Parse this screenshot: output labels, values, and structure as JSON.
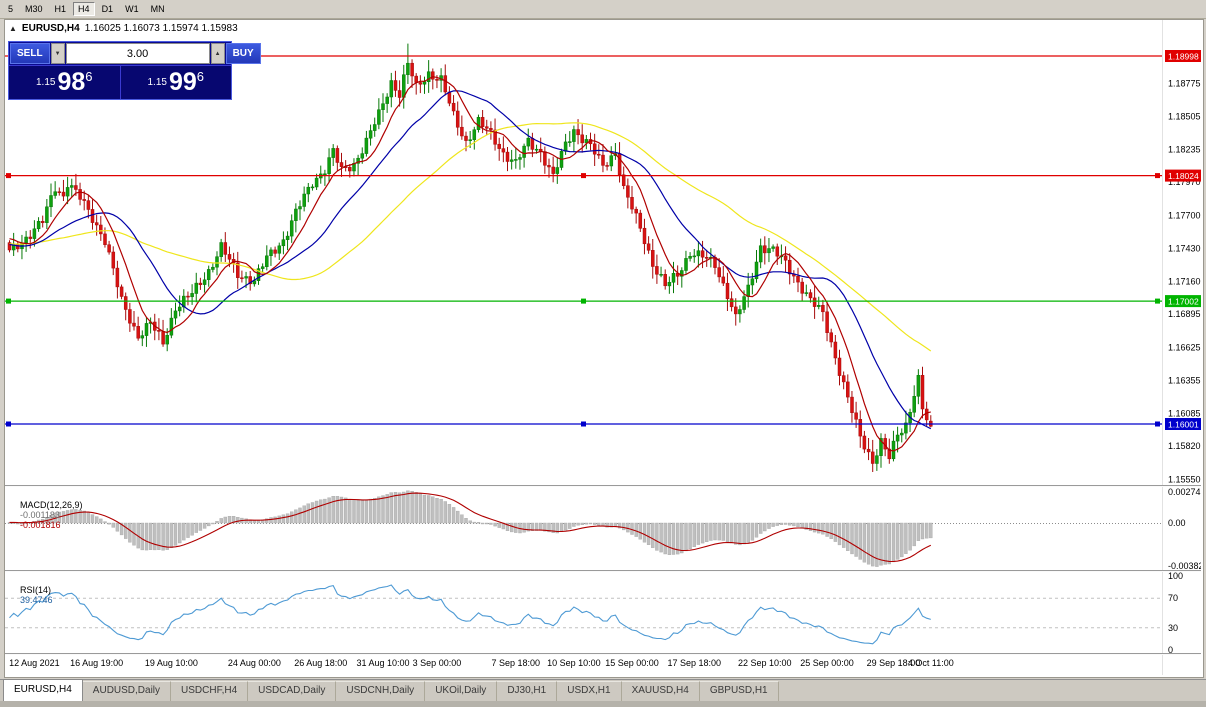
{
  "toolbar": {
    "timeframes": [
      "5",
      "M30",
      "H1",
      "H4",
      "D1",
      "W1",
      "MN"
    ],
    "active": "H4"
  },
  "chart": {
    "symbol": "EURUSD,H4",
    "ohlc": "1.16025 1.16073 1.15974 1.15983"
  },
  "icons": {
    "collapse": "▲",
    "up_arrow": "▲",
    "down_arrow": "▼"
  },
  "one_click": {
    "sell_label": "SELL",
    "buy_label": "BUY",
    "lot": "3.00",
    "sell_price": {
      "prefix": "1.15",
      "big": "98",
      "sup": "6"
    },
    "buy_price": {
      "prefix": "1.15",
      "big": "99",
      "sup": "6"
    }
  },
  "price_axis_labels": [
    "1.18775",
    "1.18505",
    "1.18235",
    "1.17970",
    "1.17700",
    "1.17430",
    "1.17160",
    "1.16895",
    "1.16625",
    "1.16355",
    "1.16085",
    "1.15820",
    "1.15550"
  ],
  "macd": {
    "label": "MACD(12,26,9)",
    "value_main": "-0.001183",
    "value_signal": "-0.001816",
    "axis": [
      {
        "label": "0.00274",
        "value": 0.00274
      },
      {
        "label": "0.00",
        "value": 0
      },
      {
        "label": "-0.00382",
        "value": -0.00382
      }
    ]
  },
  "rsi": {
    "label": "RSI(14)",
    "value": "39.4746",
    "axis": [
      {
        "label": "100",
        "value": 100
      },
      {
        "label": "70",
        "value": 70
      },
      {
        "label": "30",
        "value": 30
      },
      {
        "label": "0",
        "value": 0
      }
    ],
    "levels": [
      70,
      30
    ]
  },
  "time_axis": [
    {
      "text": "12 Aug 2021",
      "i": 6
    },
    {
      "text": "16 Aug 19:00",
      "i": 21
    },
    {
      "text": "19 Aug 10:00",
      "i": 39
    },
    {
      "text": "24 Aug 00:00",
      "i": 59
    },
    {
      "text": "26 Aug 18:00",
      "i": 75
    },
    {
      "text": "31 Aug 10:00",
      "i": 90
    },
    {
      "text": "3 Sep 00:00",
      "i": 103
    },
    {
      "text": "7 Sep 18:00",
      "i": 122
    },
    {
      "text": "10 Sep 10:00",
      "i": 136
    },
    {
      "text": "15 Sep 00:00",
      "i": 150
    },
    {
      "text": "17 Sep 18:00",
      "i": 165
    },
    {
      "text": "22 Sep 10:00",
      "i": 182
    },
    {
      "text": "25 Sep 00:00",
      "i": 197
    },
    {
      "text": "29 Sep 18:00",
      "i": 213
    },
    {
      "text": "4 Oct 11:00",
      "i": 222
    }
  ],
  "tabs": [
    {
      "label": "EURUSD,H4",
      "active": true
    },
    {
      "label": "AUDUSD,Daily",
      "active": false
    },
    {
      "label": "USDCHF,H4",
      "active": false
    },
    {
      "label": "USDCAD,Daily",
      "active": false
    },
    {
      "label": "USDCNH,Daily",
      "active": false
    },
    {
      "label": "UKOil,Daily",
      "active": false
    },
    {
      "label": "DJ30,H1",
      "active": false
    },
    {
      "label": "USDX,H1",
      "active": false
    },
    {
      "label": "XAUUSD,H4",
      "active": false
    },
    {
      "label": "GBPUSD,H1",
      "active": false
    }
  ],
  "colors": {
    "candle_up": "#0fa00f",
    "candle_up_dark": "#077807",
    "candle_down": "#d81212",
    "candle_down_dark": "#a60b0b",
    "ma_fast": "#b00000",
    "ma_mid": "#0000a8",
    "ma_slow": "#efe61c",
    "macd_hist": "#bfbfbf",
    "macd_signal": "#b00000",
    "rsi_line": "#4e9ad4"
  },
  "chart_data": {
    "type": "candlestick",
    "symbol": "EURUSD",
    "timeframe": "H4",
    "visible_range": {
      "start": "12 Aug 2021",
      "end": "4 Oct 11:00"
    },
    "price_range": [
      1.15513,
      1.19291
    ],
    "candle_count": 223,
    "last_candle": {
      "open": 1.16025,
      "high": 1.16073,
      "low": 1.15974,
      "close": 1.15983
    },
    "quote": {
      "bid": "1.15986",
      "ask": "1.15996"
    },
    "hlines": [
      {
        "price": 1.18998,
        "label": "1.18998",
        "color": "#e00000",
        "handles": false
      },
      {
        "price": 1.18024,
        "label": "1.18024",
        "color": "#e00000",
        "handles": true
      },
      {
        "price": 1.17002,
        "label": "1.17002",
        "color": "#00b400",
        "handles": true
      },
      {
        "price": 1.16001,
        "label": "1.16001",
        "color": "#0000cc",
        "handles": true
      }
    ],
    "moving_averages": [
      {
        "name": "ma-fast",
        "period": 8
      },
      {
        "name": "ma-mid",
        "period": 21
      },
      {
        "name": "ma-slow",
        "period": 50
      }
    ],
    "waypoints": [
      [
        0,
        1.174
      ],
      [
        4,
        1.1752
      ],
      [
        8,
        1.1765
      ],
      [
        11,
        1.1793
      ],
      [
        13,
        1.1786
      ],
      [
        14,
        1.1797
      ],
      [
        17,
        1.1784
      ],
      [
        20,
        1.1768
      ],
      [
        23,
        1.175
      ],
      [
        27,
        1.17
      ],
      [
        31,
        1.1672
      ],
      [
        34,
        1.1682
      ],
      [
        37,
        1.1666
      ],
      [
        40,
        1.1695
      ],
      [
        44,
        1.1706
      ],
      [
        48,
        1.1725
      ],
      [
        51,
        1.1744
      ],
      [
        55,
        1.1722
      ],
      [
        59,
        1.1717
      ],
      [
        62,
        1.1735
      ],
      [
        66,
        1.175
      ],
      [
        69,
        1.1772
      ],
      [
        73,
        1.1797
      ],
      [
        76,
        1.1808
      ],
      [
        78,
        1.1822
      ],
      [
        80,
        1.1806
      ],
      [
        83,
        1.1812
      ],
      [
        86,
        1.183
      ],
      [
        89,
        1.1852
      ],
      [
        92,
        1.1879
      ],
      [
        94,
        1.1869
      ],
      [
        96,
        1.1893
      ],
      [
        98,
        1.1874
      ],
      [
        101,
        1.1886
      ],
      [
        104,
        1.188
      ],
      [
        107,
        1.1851
      ],
      [
        110,
        1.183
      ],
      [
        113,
        1.1846
      ],
      [
        116,
        1.1836
      ],
      [
        119,
        1.1821
      ],
      [
        122,
        1.1812
      ],
      [
        125,
        1.183
      ],
      [
        128,
        1.1822
      ],
      [
        131,
        1.1801
      ],
      [
        134,
        1.1828
      ],
      [
        136,
        1.184
      ],
      [
        140,
        1.1826
      ],
      [
        143,
        1.181
      ],
      [
        146,
        1.1822
      ],
      [
        148,
        1.1791
      ],
      [
        152,
        1.176
      ],
      [
        155,
        1.1731
      ],
      [
        158,
        1.1712
      ],
      [
        161,
        1.1722
      ],
      [
        164,
        1.174
      ],
      [
        167,
        1.1736
      ],
      [
        170,
        1.173
      ],
      [
        173,
        1.1706
      ],
      [
        175,
        1.1686
      ],
      [
        178,
        1.171
      ],
      [
        181,
        1.1745
      ],
      [
        184,
        1.1741
      ],
      [
        187,
        1.1731
      ],
      [
        190,
        1.1716
      ],
      [
        193,
        1.17
      ],
      [
        196,
        1.169
      ],
      [
        199,
        1.1655
      ],
      [
        202,
        1.162
      ],
      [
        205,
        1.159
      ],
      [
        208,
        1.157
      ],
      [
        210,
        1.1585
      ],
      [
        212,
        1.1572
      ],
      [
        214,
        1.1592
      ],
      [
        216,
        1.16
      ],
      [
        218,
        1.1625
      ],
      [
        219,
        1.1636
      ],
      [
        220,
        1.1612
      ],
      [
        221,
        1.1603
      ],
      [
        222,
        1.15983
      ]
    ]
  }
}
